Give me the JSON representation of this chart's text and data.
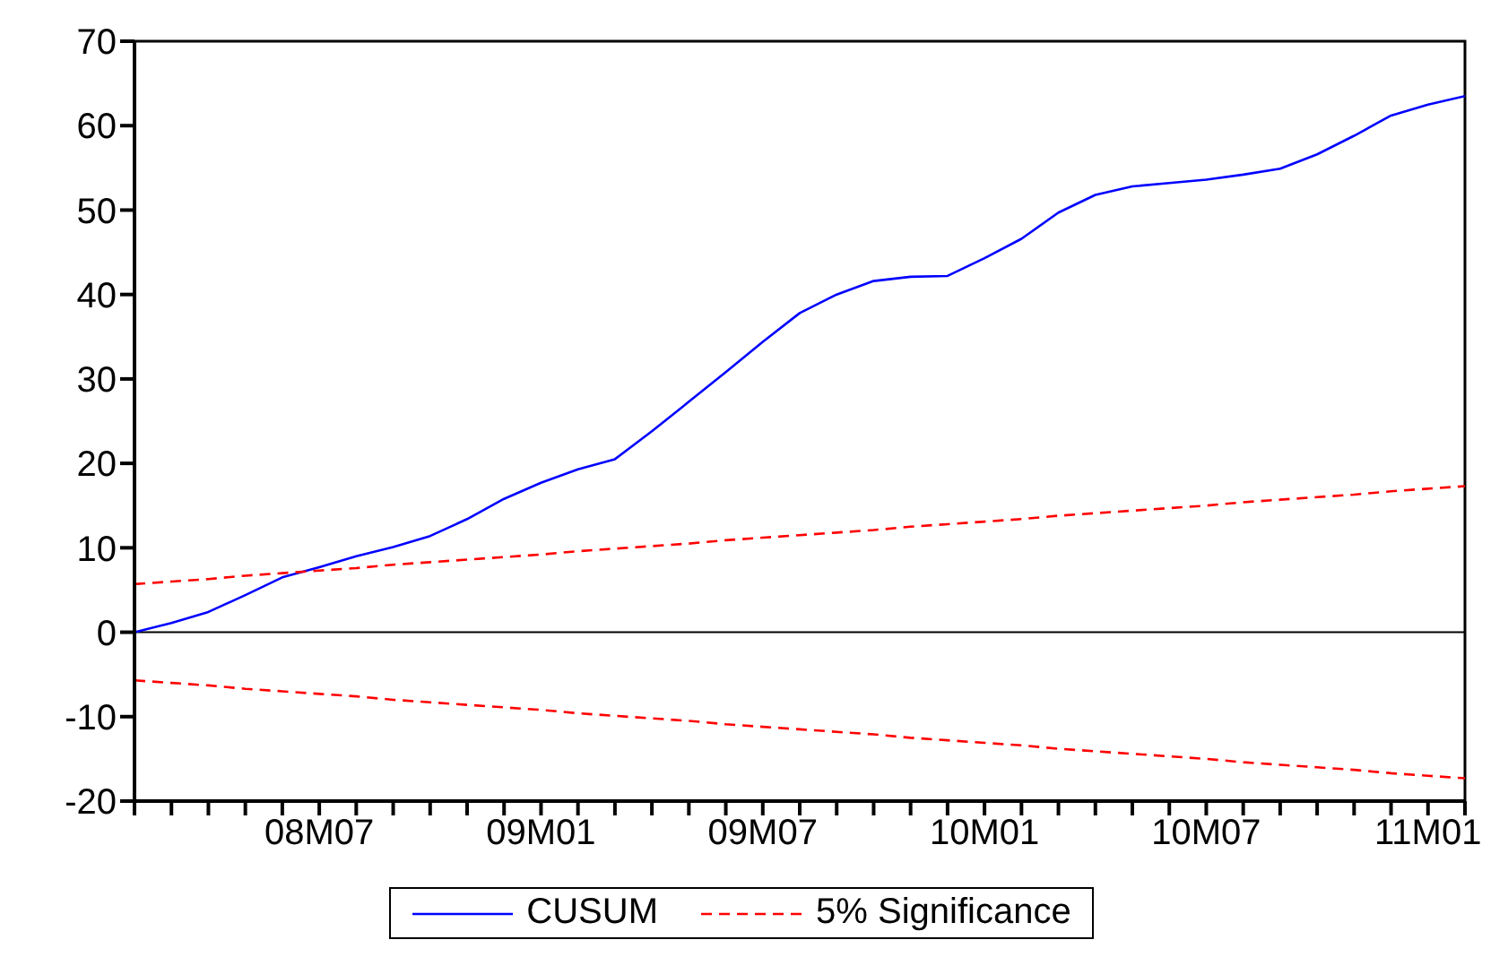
{
  "chart_data": {
    "type": "line",
    "categories": [
      null,
      null,
      null,
      null,
      null,
      "08M07",
      null,
      null,
      null,
      null,
      null,
      "09M01",
      null,
      null,
      null,
      null,
      null,
      "09M07",
      null,
      null,
      null,
      null,
      null,
      "10M01",
      null,
      null,
      null,
      null,
      null,
      "10M07",
      null,
      null,
      null,
      null,
      null,
      "11M01",
      null
    ],
    "series": [
      {
        "name": "CUSUM",
        "color": "#0000ff",
        "line_style": "solid",
        "values": [
          0,
          1.1,
          2.4,
          4.4,
          6.5,
          7.7,
          9.0,
          10.1,
          11.4,
          13.4,
          15.8,
          17.7,
          19.3,
          20.5,
          23.8,
          27.3,
          30.8,
          34.4,
          37.8,
          40.0,
          41.6,
          42.1,
          42.2,
          44.3,
          46.6,
          49.7,
          51.8,
          52.8,
          53.2,
          53.6,
          54.2,
          54.9,
          56.6,
          58.8,
          61.2,
          62.5,
          63.5
        ]
      },
      {
        "name": "5% Significance",
        "color": "#ff0000",
        "line_style": "dashed",
        "values": [
          5.7,
          6.0,
          6.3,
          6.7,
          7.0,
          7.3,
          7.6,
          8.0,
          8.3,
          8.6,
          8.9,
          9.2,
          9.6,
          9.9,
          10.2,
          10.5,
          10.9,
          11.2,
          11.5,
          11.8,
          12.1,
          12.5,
          12.8,
          13.1,
          13.4,
          13.8,
          14.1,
          14.4,
          14.7,
          15.0,
          15.4,
          15.7,
          16.0,
          16.3,
          16.7,
          17.0,
          17.3
        ]
      },
      {
        "color": "#ff0000",
        "line_style": "dashed",
        "values": [
          -5.7,
          -6.0,
          -6.3,
          -6.7,
          -7.0,
          -7.3,
          -7.6,
          -8.0,
          -8.3,
          -8.6,
          -8.9,
          -9.2,
          -9.6,
          -9.9,
          -10.2,
          -10.5,
          -10.9,
          -11.2,
          -11.5,
          -11.8,
          -12.1,
          -12.5,
          -12.8,
          -13.1,
          -13.4,
          -13.8,
          -14.1,
          -14.4,
          -14.7,
          -15.0,
          -15.4,
          -15.7,
          -16.0,
          -16.3,
          -16.7,
          -17.0,
          -17.3
        ]
      }
    ],
    "ylim": [
      -20,
      70
    ],
    "yticks": [
      -20,
      -10,
      0,
      10,
      20,
      30,
      40,
      50,
      60,
      70
    ],
    "ref_lines": [
      {
        "axis": "y",
        "value": 0,
        "color": "#000000",
        "line_style": "solid"
      }
    ],
    "grid": false,
    "legend": "bottom",
    "marker": "none"
  }
}
